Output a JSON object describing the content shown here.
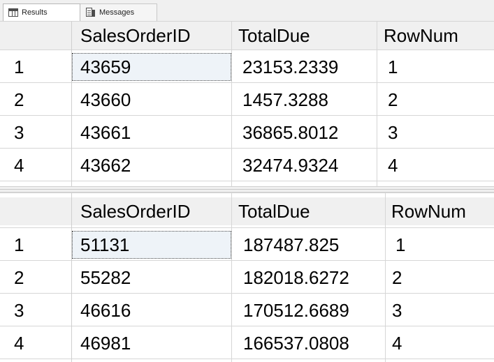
{
  "tabs": [
    {
      "label": "Results",
      "icon": "results-grid-icon",
      "selected": true
    },
    {
      "label": "Messages",
      "icon": "messages-icon",
      "selected": false
    }
  ],
  "grids": [
    {
      "columns": [
        "SalesOrderID",
        "TotalDue",
        "RowNum"
      ],
      "rows": [
        {
          "row_number": "1",
          "cells": [
            "43659",
            "23153.2339",
            "1"
          ]
        },
        {
          "row_number": "2",
          "cells": [
            "43660",
            "1457.3288",
            "2"
          ]
        },
        {
          "row_number": "3",
          "cells": [
            "43661",
            "36865.8012",
            "3"
          ]
        },
        {
          "row_number": "4",
          "cells": [
            "43662",
            "32474.9324",
            "4"
          ]
        }
      ]
    },
    {
      "columns": [
        "SalesOrderID",
        "TotalDue",
        "RowNum"
      ],
      "rows": [
        {
          "row_number": "1",
          "cells": [
            "51131",
            "187487.825",
            "1"
          ]
        },
        {
          "row_number": "2",
          "cells": [
            "55282",
            "182018.6272",
            "2"
          ]
        },
        {
          "row_number": "3",
          "cells": [
            "46616",
            "170512.6689",
            "3"
          ]
        },
        {
          "row_number": "4",
          "cells": [
            "46981",
            "166537.0808",
            "4"
          ]
        }
      ]
    }
  ]
}
